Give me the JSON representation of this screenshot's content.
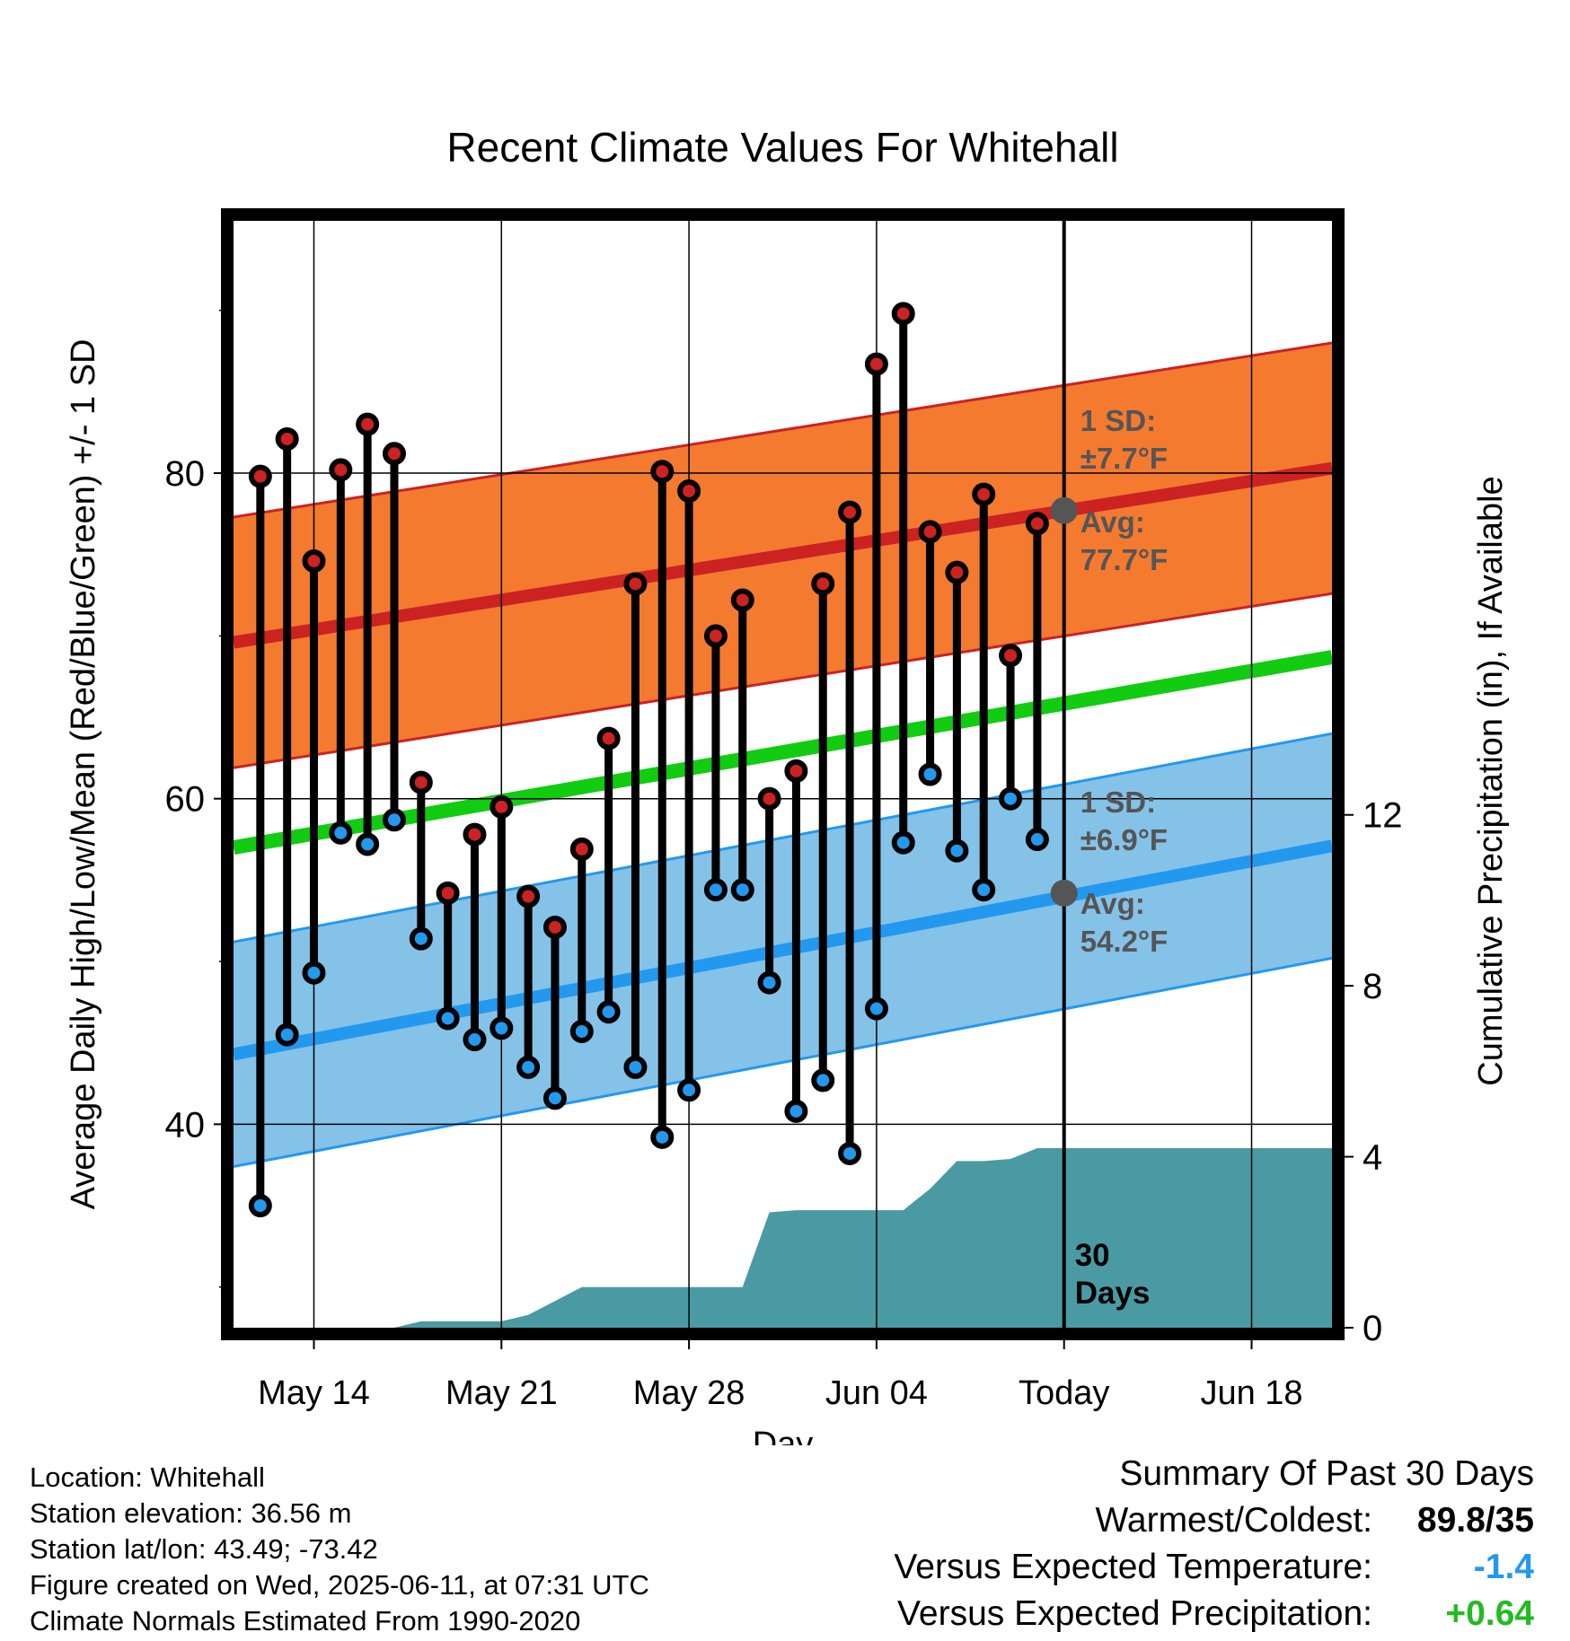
{
  "chart_data": {
    "type": "line",
    "title": "Recent Climate Values For Whitehall",
    "xlabel": "Day",
    "ylabel_left": "Average Daily High/Low/Mean (Red/Blue/Green) +/- 1 SD",
    "ylabel_right": "Cumulative Precipitation (in), If Available",
    "x_ticks": [
      "May 14",
      "May 21",
      "May 28",
      "Jun 04",
      "Today",
      "Jun 18"
    ],
    "x_tick_days": [
      3,
      10,
      17,
      24,
      31,
      38
    ],
    "xlim": [
      0,
      41
    ],
    "ylim": [
      27.5,
      95.5
    ],
    "y_ticks": [
      40,
      60,
      80
    ],
    "y2lim": [
      0,
      25.9
    ],
    "y2_ticks": [
      0,
      4,
      8,
      12
    ],
    "today_day": 31,
    "today_label": [
      "30",
      "Days"
    ],
    "normal_high": {
      "start": 69.6,
      "end": 80.3,
      "sd": 7.7,
      "sd_text": "1 SD:",
      "sd_value": "±7.7°F",
      "avg_text": "Avg:",
      "avg_value": "77.7°F",
      "today_avg": 77.7
    },
    "normal_low": {
      "start": 44.3,
      "end": 57.1,
      "sd": 6.9,
      "sd_text": "1 SD:",
      "sd_value": "±6.9°F",
      "avg_text": "Avg:",
      "avg_value": "54.2°F",
      "today_avg": 54.2
    },
    "normal_mean": {
      "start": 57.0,
      "end": 68.7
    },
    "series": [
      {
        "name": "High",
        "color": "#cc2222",
        "x": [
          1,
          2,
          3,
          4,
          5,
          6,
          7,
          8,
          9,
          10,
          11,
          12,
          13,
          14,
          15,
          16,
          17,
          18,
          19,
          20,
          21,
          22,
          23,
          24,
          25,
          26,
          27,
          28,
          29,
          30
        ],
        "values": [
          79.8,
          82.1,
          74.6,
          80.2,
          83.0,
          81.2,
          61.0,
          54.2,
          57.8,
          59.5,
          54.0,
          52.1,
          56.9,
          63.7,
          73.2,
          80.1,
          78.9,
          70.0,
          72.2,
          60.0,
          61.7,
          73.2,
          77.6,
          86.7,
          89.8,
          76.4,
          73.9,
          78.7,
          68.8,
          76.9
        ]
      },
      {
        "name": "Low",
        "color": "#2299ee",
        "x": [
          1,
          2,
          3,
          4,
          5,
          6,
          7,
          8,
          9,
          10,
          11,
          12,
          13,
          14,
          15,
          16,
          17,
          18,
          19,
          20,
          21,
          22,
          23,
          24,
          25,
          26,
          27,
          28,
          29,
          30
        ],
        "values": [
          35.0,
          45.5,
          49.3,
          57.9,
          57.2,
          58.7,
          51.4,
          46.5,
          45.2,
          45.9,
          43.5,
          41.6,
          45.7,
          46.9,
          43.5,
          39.2,
          42.1,
          54.4,
          54.4,
          48.7,
          40.8,
          42.7,
          38.2,
          47.1,
          57.3,
          61.5,
          56.8,
          54.4,
          60.0,
          57.5
        ]
      },
      {
        "name": "Cumulative Precipitation",
        "color": "#4a9aa4",
        "x": [
          0,
          6,
          7,
          9,
          10,
          11,
          13,
          15,
          16,
          17,
          18,
          19,
          20,
          21,
          22,
          23,
          24,
          25,
          26,
          27,
          28,
          29,
          30,
          31,
          41
        ],
        "values": [
          0,
          0,
          0.15,
          0.15,
          0.15,
          0.3,
          0.95,
          0.95,
          0.95,
          0.95,
          0.95,
          0.95,
          2.7,
          2.75,
          2.75,
          2.75,
          2.75,
          2.75,
          3.25,
          3.9,
          3.9,
          3.95,
          4.2,
          4.2,
          4.2
        ]
      }
    ]
  },
  "info": {
    "location": "Location: Whitehall",
    "elevation": "Station elevation: 36.56 m",
    "latlon": "Station lat/lon: 43.49; -73.42",
    "created": "Figure created on Wed, 2025-06-11, at 07:31 UTC",
    "normals": "Climate Normals Estimated From 1990-2020"
  },
  "summary": {
    "title": "Summary Of Past 30 Days",
    "warmest_label": "Warmest/Coldest:",
    "warmest_value": "89.8/35",
    "temp_label": "Versus Expected Temperature:",
    "temp_value": "-1.4",
    "temp_color": "#2299ee",
    "precip_label": "Versus Expected Precipitation:",
    "precip_value": "+0.64",
    "precip_color": "#22bb22"
  }
}
